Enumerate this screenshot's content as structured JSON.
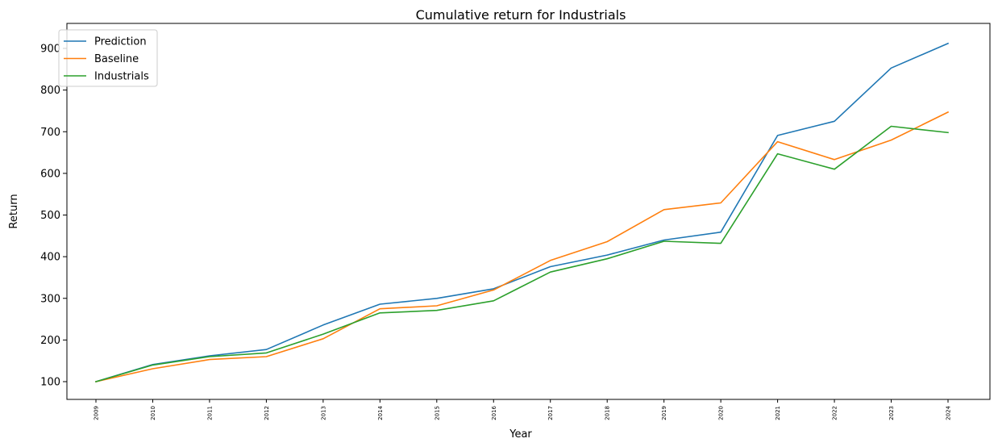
{
  "chart_data": {
    "type": "line",
    "title": "Cumulative return for Industrials",
    "xlabel": "Year",
    "ylabel": "Return",
    "x": [
      "2009",
      "2010",
      "2011",
      "2012",
      "2013",
      "2014",
      "2015",
      "2016",
      "2017",
      "2018",
      "2019",
      "2020",
      "2021",
      "2022",
      "2023",
      "2024"
    ],
    "yticks": [
      100,
      200,
      300,
      400,
      500,
      600,
      700,
      800,
      900
    ],
    "ylim": [
      60,
      956
    ],
    "grid": false,
    "legend_position": "upper-left",
    "series": [
      {
        "name": "Prediction",
        "color": "#1f77b4",
        "values": [
          100,
          141,
          162,
          177,
          236,
          286,
          300,
          323,
          376,
          404,
          440,
          459,
          691,
          725,
          853,
          912
        ]
      },
      {
        "name": "Baseline",
        "color": "#ff7f0e",
        "values": [
          100,
          131,
          153,
          160,
          203,
          275,
          282,
          320,
          391,
          436,
          513,
          529,
          676,
          633,
          680,
          747
        ]
      },
      {
        "name": "Industrials",
        "color": "#2ca02c",
        "values": [
          100,
          140,
          160,
          169,
          214,
          265,
          271,
          294,
          363,
          395,
          437,
          432,
          647,
          610,
          713,
          698
        ]
      }
    ]
  }
}
